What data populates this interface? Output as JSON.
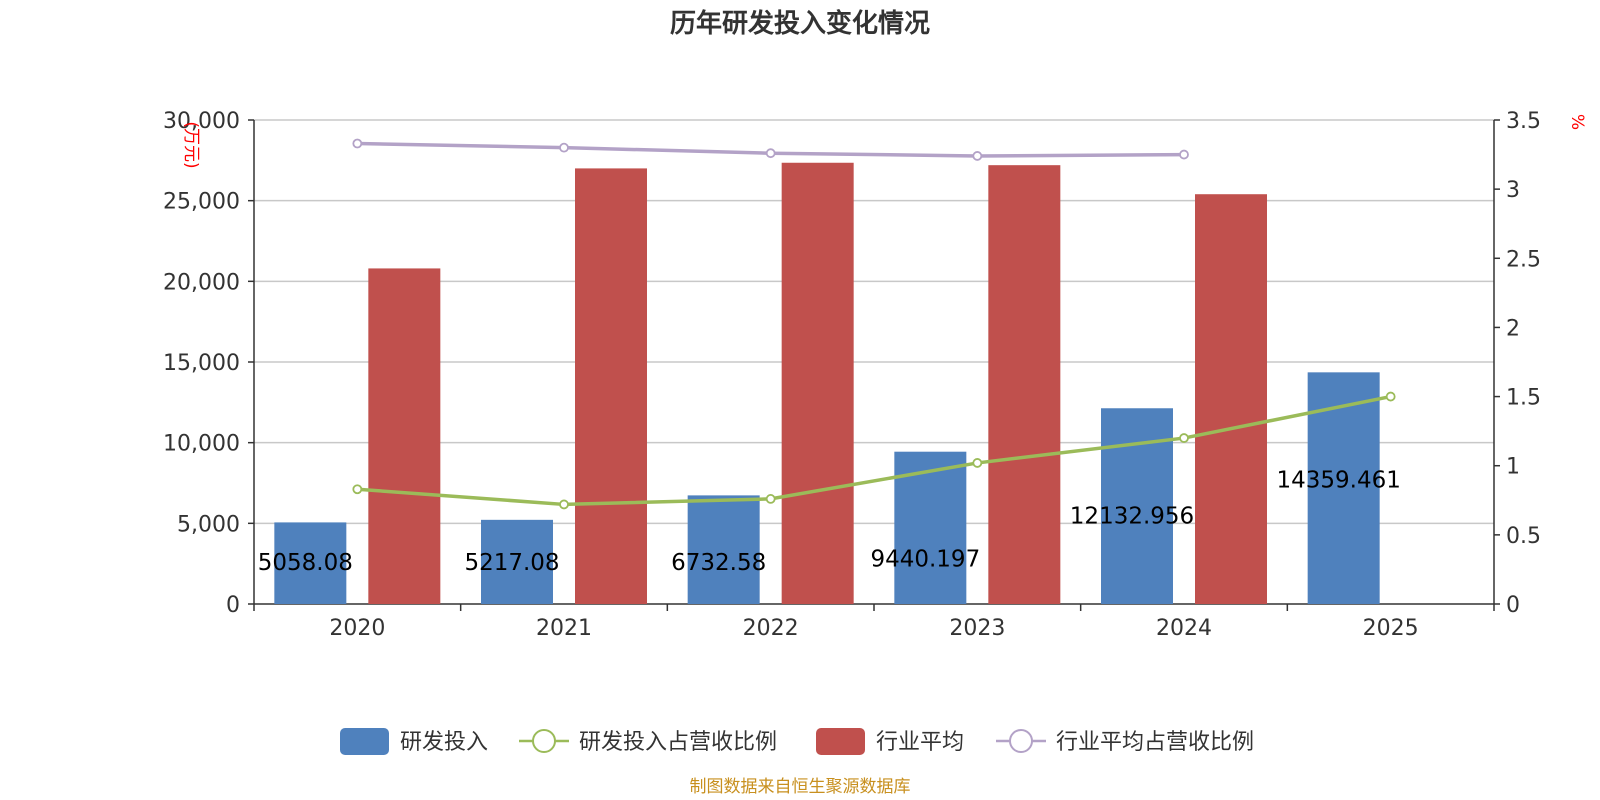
{
  "chart_data": {
    "type": "bar",
    "title": "历年研发投入变化情况",
    "categories": [
      "2020",
      "2021",
      "2022",
      "2023",
      "2024",
      "2025"
    ],
    "y_left": {
      "unit_label": "(万元)",
      "ylim": [
        0,
        30000
      ],
      "ticks": [
        "0",
        "5,000",
        "10,000",
        "15,000",
        "20,000",
        "25,000",
        "30,000"
      ]
    },
    "y_right": {
      "unit_label": "%",
      "ylim": [
        0,
        3.5
      ],
      "ticks": [
        "0",
        "0.5",
        "1",
        "1.5",
        "2",
        "2.5",
        "3",
        "3.5"
      ]
    },
    "grid": true,
    "legend_position": "bottom",
    "series": [
      {
        "name": "研发投入",
        "kind": "bar",
        "axis": "left",
        "color": "#4f81bd",
        "values": [
          5058.08,
          5217.08,
          6732.58,
          9440.197,
          12132.956,
          14359.461
        ],
        "labels": [
          "5058.08",
          "5217.08",
          "6732.58",
          "9440.197",
          "12132.956",
          "14359.461"
        ]
      },
      {
        "name": "研发投入占营收比例",
        "kind": "line",
        "axis": "right",
        "color": "#9bbb59",
        "values": [
          0.83,
          0.72,
          0.76,
          1.02,
          1.2,
          1.5
        ]
      },
      {
        "name": "行业平均",
        "kind": "bar",
        "axis": "left",
        "color": "#c0504d",
        "values": [
          20800,
          27000,
          27350,
          27200,
          25400,
          null
        ]
      },
      {
        "name": "行业平均占营收比例",
        "kind": "line",
        "axis": "right",
        "color": "#b3a2c7",
        "values": [
          3.33,
          3.3,
          3.26,
          3.24,
          3.25,
          null
        ]
      }
    ]
  },
  "footer": {
    "source": "制图数据来自恒生聚源数据库"
  }
}
